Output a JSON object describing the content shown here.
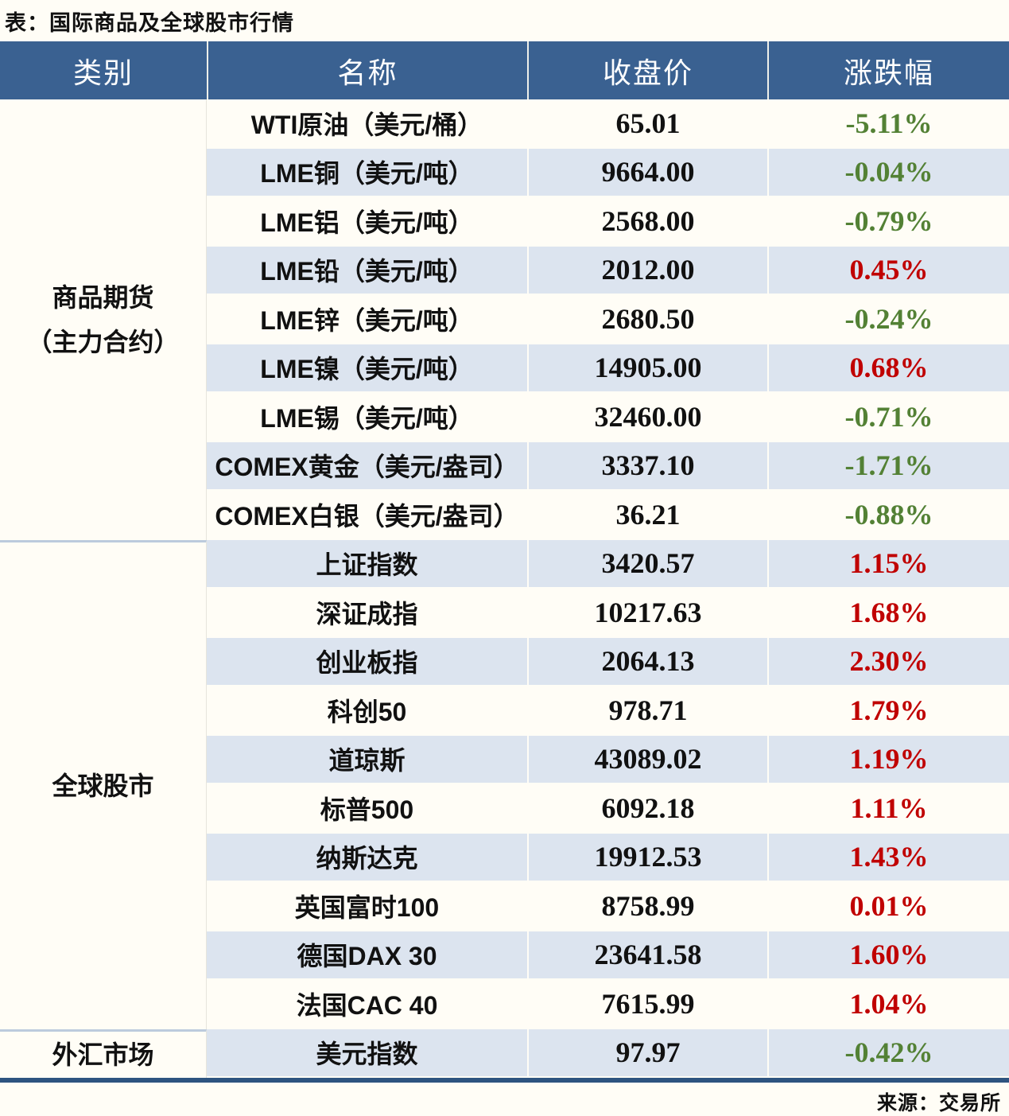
{
  "title": "表：国际商品及全球股市行情",
  "source": "来源：交易所",
  "colors": {
    "page_bg": "#fffdf6",
    "header_bg": "#3a6191",
    "stripe_row": "#dce4ef",
    "gain_red": "#c00000",
    "decline_green": "#538135",
    "bottom_border": "#2e5480",
    "category_divider": "#bccbdd"
  },
  "table": {
    "headers": [
      "类别",
      "名称",
      "收盘价",
      "涨跌幅"
    ],
    "groups": [
      {
        "category_lines": [
          "商品期货",
          "（主力合约）"
        ],
        "rows": [
          {
            "name": "WTI原油（美元/桶）",
            "close": "65.01",
            "change": "-5.11%"
          },
          {
            "name": "LME铜（美元/吨）",
            "close": "9664.00",
            "change": "-0.04%"
          },
          {
            "name": "LME铝（美元/吨）",
            "close": "2568.00",
            "change": "-0.79%"
          },
          {
            "name": "LME铅（美元/吨）",
            "close": "2012.00",
            "change": "0.45%"
          },
          {
            "name": "LME锌（美元/吨）",
            "close": "2680.50",
            "change": "-0.24%"
          },
          {
            "name": "LME镍（美元/吨）",
            "close": "14905.00",
            "change": "0.68%"
          },
          {
            "name": "LME锡（美元/吨）",
            "close": "32460.00",
            "change": "-0.71%"
          },
          {
            "name": "COMEX黄金（美元/盎司）",
            "close": "3337.10",
            "change": "-1.71%"
          },
          {
            "name": "COMEX白银（美元/盎司）",
            "close": "36.21",
            "change": "-0.88%"
          }
        ]
      },
      {
        "category_lines": [
          "全球股市"
        ],
        "rows": [
          {
            "name": "上证指数",
            "close": "3420.57",
            "change": "1.15%"
          },
          {
            "name": "深证成指",
            "close": "10217.63",
            "change": "1.68%"
          },
          {
            "name": "创业板指",
            "close": "2064.13",
            "change": "2.30%"
          },
          {
            "name": "科创50",
            "close": "978.71",
            "change": "1.79%"
          },
          {
            "name": "道琼斯",
            "close": "43089.02",
            "change": "1.19%"
          },
          {
            "name": "标普500",
            "close": "6092.18",
            "change": "1.11%"
          },
          {
            "name": "纳斯达克",
            "close": "19912.53",
            "change": "1.43%"
          },
          {
            "name": "英国富时100",
            "close": "8758.99",
            "change": "0.01%"
          },
          {
            "name": "德国DAX 30",
            "close": "23641.58",
            "change": "1.60%"
          },
          {
            "name": "法国CAC 40",
            "close": "7615.99",
            "change": "1.04%"
          }
        ]
      },
      {
        "category_lines": [
          "外汇市场"
        ],
        "rows": [
          {
            "name": "美元指数",
            "close": "97.97",
            "change": "-0.42%"
          }
        ]
      }
    ]
  }
}
